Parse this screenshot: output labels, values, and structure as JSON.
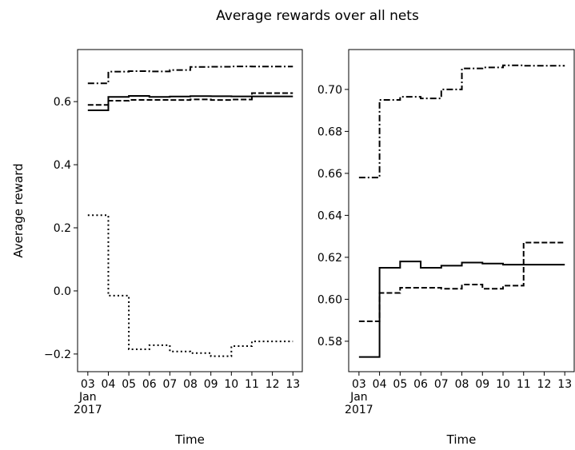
{
  "title": "Average rewards over all nets",
  "chart_data": [
    {
      "type": "line",
      "steps": "post",
      "ylabel": "Average reward",
      "xlabel": "Time",
      "x": [
        "2017-01-03",
        "2017-01-04",
        "2017-01-05",
        "2017-01-06",
        "2017-01-07",
        "2017-01-08",
        "2017-01-09",
        "2017-01-10",
        "2017-01-11",
        "2017-01-12",
        "2017-01-13"
      ],
      "xlim": [
        "2017-01-02T12:00:00Z",
        "2017-01-13T11:00:00Z"
      ],
      "xticks": [
        {
          "value": "2017-01-03",
          "label": "03\nJan\n2017"
        },
        {
          "value": "2017-01-04",
          "label": "04"
        },
        {
          "value": "2017-01-05",
          "label": "05"
        },
        {
          "value": "2017-01-06",
          "label": "06"
        },
        {
          "value": "2017-01-07",
          "label": "07"
        },
        {
          "value": "2017-01-08",
          "label": "08"
        },
        {
          "value": "2017-01-09",
          "label": "09"
        },
        {
          "value": "2017-01-10",
          "label": "10"
        },
        {
          "value": "2017-01-11",
          "label": "11"
        },
        {
          "value": "2017-01-12",
          "label": "12"
        },
        {
          "value": "2017-01-13",
          "label": "13"
        }
      ],
      "ylim": [
        -0.256,
        0.765
      ],
      "yticks": [
        {
          "value": -0.2,
          "label": "−0.2"
        },
        {
          "value": 0,
          "label": "0.0"
        },
        0.2,
        0.4,
        0.6
      ],
      "series": [
        {
          "color": "#000000",
          "style": "dashdot",
          "values": [
            0.658,
            0.695,
            0.6965,
            0.6957,
            0.7,
            0.71,
            0.7105,
            0.7115,
            0.7113,
            0.7113,
            0.7113
          ]
        },
        {
          "color": "#000000",
          "style": "solid",
          "values": [
            0.5725,
            0.615,
            0.618,
            0.615,
            0.616,
            0.6175,
            0.617,
            0.6165,
            0.6165,
            0.6165,
            0.6165
          ]
        },
        {
          "color": "#000000",
          "style": "dashed",
          "values": [
            0.5895,
            0.603,
            0.6055,
            0.6055,
            0.605,
            0.607,
            0.605,
            0.6065,
            0.627,
            0.627,
            0.627
          ]
        },
        {
          "color": "#000000",
          "style": "dotted",
          "values": [
            0.24,
            -0.015,
            -0.185,
            -0.172,
            -0.192,
            -0.197,
            -0.207,
            -0.175,
            -0.16,
            -0.16,
            -0.16
          ]
        }
      ]
    },
    {
      "type": "line",
      "steps": "post",
      "xlabel": "Time",
      "x": [
        "2017-01-03",
        "2017-01-04",
        "2017-01-05",
        "2017-01-06",
        "2017-01-07",
        "2017-01-08",
        "2017-01-09",
        "2017-01-10",
        "2017-01-11",
        "2017-01-12",
        "2017-01-13"
      ],
      "xlim": [
        "2017-01-02T12:00:00Z",
        "2017-01-13T11:00:00Z"
      ],
      "xticks": [
        {
          "value": "2017-01-03",
          "label": "03\nJan\n2017"
        },
        {
          "value": "2017-01-04",
          "label": "04"
        },
        {
          "value": "2017-01-05",
          "label": "05"
        },
        {
          "value": "2017-01-06",
          "label": "06"
        },
        {
          "value": "2017-01-07",
          "label": "07"
        },
        {
          "value": "2017-01-08",
          "label": "08"
        },
        {
          "value": "2017-01-09",
          "label": "09"
        },
        {
          "value": "2017-01-10",
          "label": "10"
        },
        {
          "value": "2017-01-11",
          "label": "11"
        },
        {
          "value": "2017-01-12",
          "label": "12"
        },
        {
          "value": "2017-01-13",
          "label": "13"
        }
      ],
      "ylim": [
        0.5655,
        0.719
      ],
      "yticks": [
        0.58,
        {
          "value": 0.6,
          "label": "0.60"
        },
        0.62,
        0.64,
        0.66,
        0.68,
        {
          "value": 0.7,
          "label": "0.70"
        }
      ],
      "series": [
        {
          "color": "#000000",
          "style": "dashdot",
          "values": [
            0.658,
            0.695,
            0.6965,
            0.6957,
            0.7,
            0.71,
            0.7105,
            0.7115,
            0.7113,
            0.7113,
            0.7113
          ]
        },
        {
          "color": "#000000",
          "style": "solid",
          "values": [
            0.5725,
            0.615,
            0.618,
            0.615,
            0.616,
            0.6175,
            0.617,
            0.6165,
            0.6165,
            0.6165,
            0.6165
          ]
        },
        {
          "color": "#000000",
          "style": "dashed",
          "values": [
            0.5895,
            0.603,
            0.6055,
            0.6055,
            0.605,
            0.607,
            0.605,
            0.6065,
            0.627,
            0.627,
            0.627
          ]
        }
      ]
    }
  ]
}
